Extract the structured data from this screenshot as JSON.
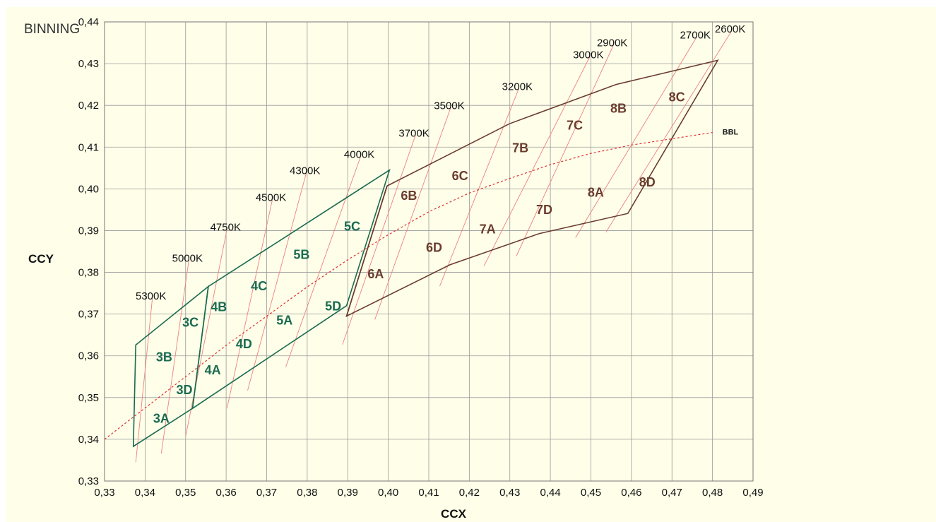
{
  "chart_data": {
    "type": "scatter",
    "title": "BINNING",
    "xlabel": "CCX",
    "ylabel": "CCY",
    "xlim": [
      0.33,
      0.49
    ],
    "ylim": [
      0.33,
      0.44
    ],
    "x_ticks": [
      "0,33",
      "0,34",
      "0,35",
      "0,36",
      "0,37",
      "0,38",
      "0,39",
      "0,40",
      "0,41",
      "0,42",
      "0,43",
      "0,44",
      "0,45",
      "0,46",
      "0,47",
      "0,48",
      "0,49"
    ],
    "y_ticks": [
      "0,33",
      "0,34",
      "0,35",
      "0,36",
      "0,37",
      "0,38",
      "0,39",
      "0,40",
      "0,41",
      "0,42",
      "0,43",
      "0,44"
    ],
    "x_tick_values": [
      0.33,
      0.34,
      0.35,
      0.36,
      0.37,
      0.38,
      0.39,
      0.4,
      0.41,
      0.42,
      0.43,
      0.44,
      0.45,
      0.46,
      0.47,
      0.48,
      0.49
    ],
    "y_tick_values": [
      0.33,
      0.34,
      0.35,
      0.36,
      0.37,
      0.38,
      0.39,
      0.4,
      0.41,
      0.42,
      0.43,
      0.44
    ],
    "grid": true,
    "colors": {
      "green": "#1a6b50",
      "brown": "#6b3d2e",
      "isotherm": "#f08080",
      "bbl": "#e03030"
    },
    "bbl": {
      "label": "BBL",
      "points": [
        [
          0.33,
          0.34
        ],
        [
          0.34,
          0.3475
        ],
        [
          0.35,
          0.355
        ],
        [
          0.36,
          0.3625
        ],
        [
          0.37,
          0.3695
        ],
        [
          0.38,
          0.3765
        ],
        [
          0.39,
          0.383
        ],
        [
          0.4,
          0.389
        ],
        [
          0.41,
          0.3945
        ],
        [
          0.42,
          0.399
        ],
        [
          0.43,
          0.4025
        ],
        [
          0.44,
          0.4058
        ],
        [
          0.45,
          0.4085
        ],
        [
          0.46,
          0.4105
        ],
        [
          0.47,
          0.412
        ],
        [
          0.48,
          0.4135
        ]
      ]
    },
    "isotherms": [
      {
        "label": "5300K",
        "start": [
          0.3377,
          0.3345
        ],
        "end": [
          0.3418,
          0.3738
        ]
      },
      {
        "label": "5000K",
        "start": [
          0.344,
          0.3366
        ],
        "end": [
          0.3508,
          0.3829
        ]
      },
      {
        "label": "4750K",
        "start": [
          0.35,
          0.3407
        ],
        "end": [
          0.3602,
          0.3903
        ]
      },
      {
        "label": "4500K",
        "start": [
          0.3602,
          0.3474
        ],
        "end": [
          0.3714,
          0.3974
        ]
      },
      {
        "label": "4300K",
        "start": [
          0.3653,
          0.3517
        ],
        "end": [
          0.3798,
          0.4039
        ]
      },
      {
        "label": "4000K",
        "start": [
          0.3747,
          0.3573
        ],
        "end": [
          0.3932,
          0.4078
        ]
      },
      {
        "label": "3700K",
        "start": [
          0.3887,
          0.3627
        ],
        "end": [
          0.4067,
          0.4128
        ]
      },
      {
        "label": "3500K",
        "start": [
          0.3967,
          0.3687
        ],
        "end": [
          0.4154,
          0.4194
        ]
      },
      {
        "label": "3200K",
        "start": [
          0.4127,
          0.3767
        ],
        "end": [
          0.4322,
          0.424
        ]
      },
      {
        "label": "3000K",
        "start": [
          0.4236,
          0.3815
        ],
        "end": [
          0.4497,
          0.4316
        ]
      },
      {
        "label": "2900K",
        "start": [
          0.4316,
          0.3839
        ],
        "end": [
          0.4556,
          0.4345
        ]
      },
      {
        "label": "2700K",
        "start": [
          0.4462,
          0.3883
        ],
        "end": [
          0.4761,
          0.4364
        ]
      },
      {
        "label": "2600K",
        "start": [
          0.4537,
          0.3896
        ],
        "end": [
          0.4847,
          0.4378
        ]
      }
    ],
    "regions": [
      {
        "color": "green",
        "points": [
          [
            0.3371,
            0.3383
          ],
          [
            0.3377,
            0.3626
          ],
          [
            0.3556,
            0.3766
          ],
          [
            0.3517,
            0.3474
          ]
        ]
      },
      {
        "color": "green",
        "points": [
          [
            0.3517,
            0.3474
          ],
          [
            0.3556,
            0.3766
          ],
          [
            0.4003,
            0.4045
          ],
          [
            0.3897,
            0.372
          ]
        ]
      },
      {
        "color": "brown",
        "points": [
          [
            0.3897,
            0.3695
          ],
          [
            0.3997,
            0.4007
          ],
          [
            0.4299,
            0.4156
          ],
          [
            0.4562,
            0.425
          ],
          [
            0.4813,
            0.4308
          ],
          [
            0.4591,
            0.3941
          ],
          [
            0.4373,
            0.3893
          ],
          [
            0.4152,
            0.3818
          ]
        ]
      }
    ],
    "dividers": [
      {
        "color": "brown",
        "from": [
          0.3897,
          0.3695
        ],
        "to": [
          0.3997,
          0.4007
        ]
      }
    ],
    "bins": [
      {
        "label": "3A",
        "color": "green",
        "x": 0.344,
        "y": 0.345
      },
      {
        "label": "3B",
        "color": "green",
        "x": 0.3447,
        "y": 0.3597
      },
      {
        "label": "3C",
        "color": "green",
        "x": 0.3512,
        "y": 0.368
      },
      {
        "label": "3D",
        "color": "green",
        "x": 0.3497,
        "y": 0.3518
      },
      {
        "label": "4A",
        "color": "green",
        "x": 0.3567,
        "y": 0.3566
      },
      {
        "label": "4B",
        "color": "green",
        "x": 0.3582,
        "y": 0.3717
      },
      {
        "label": "4C",
        "color": "green",
        "x": 0.3681,
        "y": 0.3767
      },
      {
        "label": "4D",
        "color": "green",
        "x": 0.3644,
        "y": 0.3628
      },
      {
        "label": "5A",
        "color": "green",
        "x": 0.3744,
        "y": 0.3685
      },
      {
        "label": "5B",
        "color": "green",
        "x": 0.3786,
        "y": 0.3842
      },
      {
        "label": "5C",
        "color": "green",
        "x": 0.3911,
        "y": 0.391
      },
      {
        "label": "5D",
        "color": "green",
        "x": 0.3864,
        "y": 0.3719
      },
      {
        "label": "6A",
        "color": "brown",
        "x": 0.3969,
        "y": 0.3796
      },
      {
        "label": "6B",
        "color": "brown",
        "x": 0.4051,
        "y": 0.3984
      },
      {
        "label": "6C",
        "color": "brown",
        "x": 0.4177,
        "y": 0.4031
      },
      {
        "label": "6D",
        "color": "brown",
        "x": 0.4113,
        "y": 0.3859
      },
      {
        "label": "7A",
        "color": "brown",
        "x": 0.4245,
        "y": 0.3903
      },
      {
        "label": "7B",
        "color": "brown",
        "x": 0.4326,
        "y": 0.4098
      },
      {
        "label": "7C",
        "color": "brown",
        "x": 0.446,
        "y": 0.4152
      },
      {
        "label": "7D",
        "color": "brown",
        "x": 0.4385,
        "y": 0.395
      },
      {
        "label": "8A",
        "color": "brown",
        "x": 0.4512,
        "y": 0.3991
      },
      {
        "label": "8B",
        "color": "brown",
        "x": 0.4568,
        "y": 0.4193
      },
      {
        "label": "8C",
        "color": "brown",
        "x": 0.4712,
        "y": 0.422
      },
      {
        "label": "8D",
        "color": "brown",
        "x": 0.4639,
        "y": 0.4016
      }
    ]
  }
}
